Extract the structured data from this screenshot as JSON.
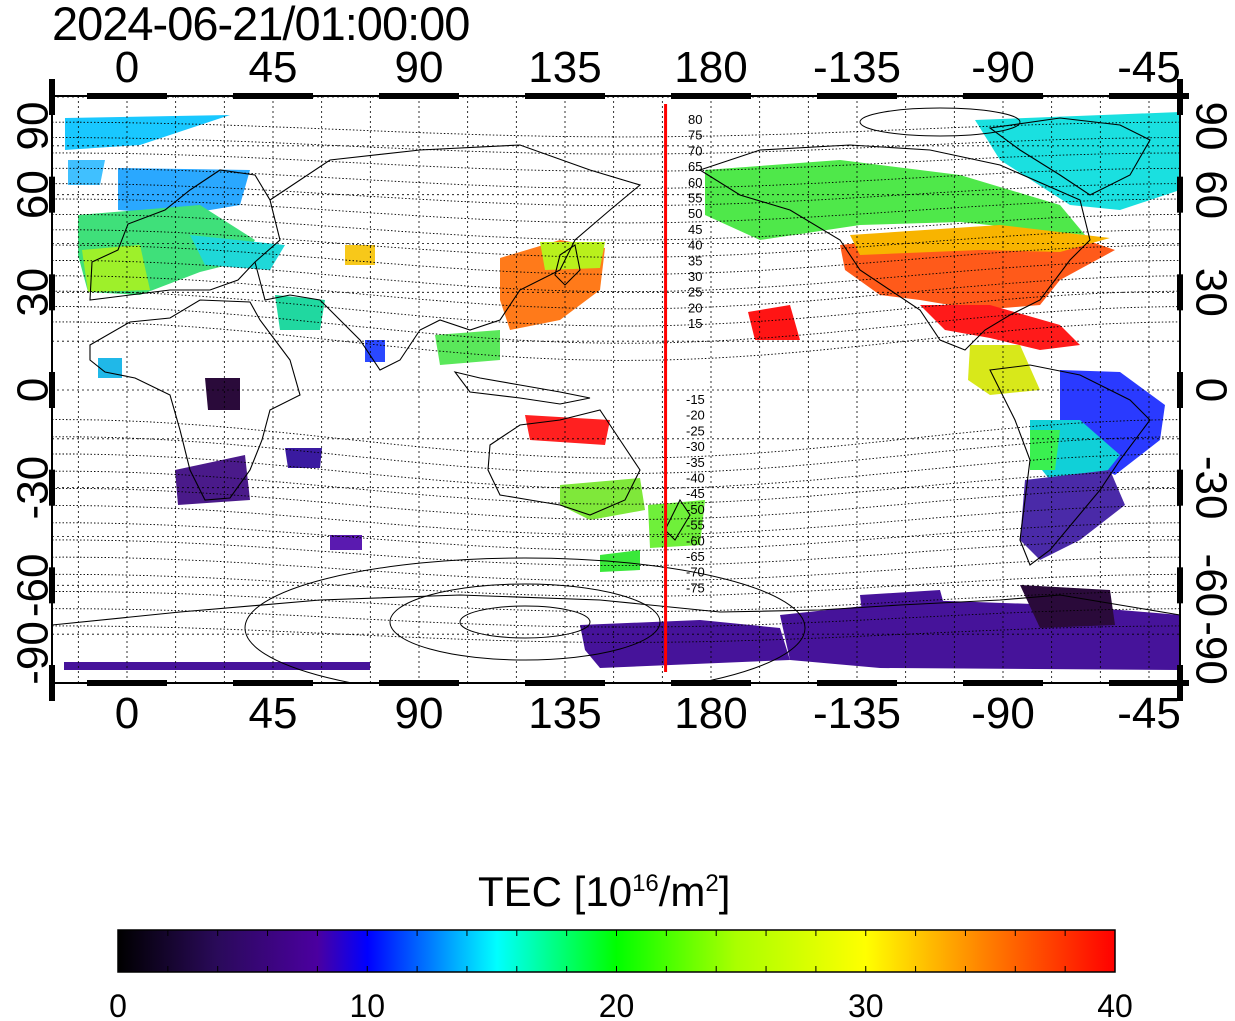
{
  "title": "2024-06-21/01:00:00",
  "map": {
    "lon_ticks": [
      "0",
      "45",
      "90",
      "135",
      "180",
      "-135",
      "-90",
      "-45"
    ],
    "lat_ticks_left": [
      "90",
      "60",
      "30",
      "0",
      "-30",
      "-60",
      "-90"
    ],
    "lat_ticks_right": [
      "90",
      "60",
      "30",
      "0",
      "-30",
      "-60",
      "-90"
    ],
    "terminator_lon": 166,
    "contour_labels_north": [
      "80",
      "75",
      "70",
      "65",
      "60",
      "55",
      "50",
      "45",
      "40",
      "35",
      "30",
      "25",
      "20",
      "15"
    ],
    "contour_labels_south": [
      "-15",
      "-20",
      "-25",
      "-30",
      "-35",
      "-40",
      "-45",
      "-50",
      "-55",
      "-60",
      "-65",
      "-70",
      "-75"
    ],
    "colors": {
      "terminator": "#ff0000",
      "frame": "#000000"
    }
  },
  "colorbar": {
    "label_main": "TEC  [10",
    "label_exp1": "16",
    "label_unit": "/m",
    "label_exp2": "2",
    "label_close": "]",
    "ticks": [
      "0",
      "10",
      "20",
      "30",
      "40"
    ],
    "range": [
      0,
      40
    ],
    "stops": [
      "#000000",
      "#3c0a78",
      "#0000ff",
      "#00ffff",
      "#00ff00",
      "#ffff00",
      "#ff8000",
      "#ff0000"
    ]
  }
}
